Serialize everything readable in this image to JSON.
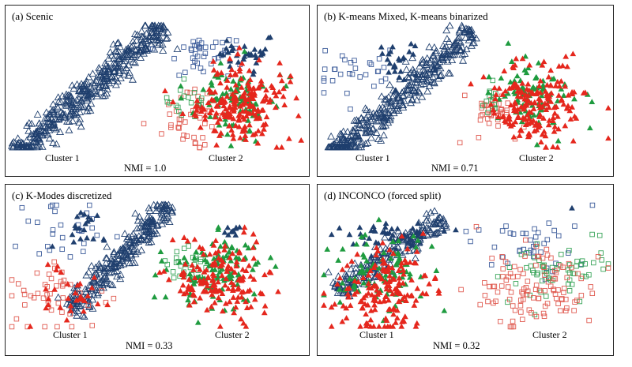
{
  "figure": {
    "colors": {
      "navy": "#1f3f6e",
      "blue_outline": "#3b5b9a",
      "red": "#e5271d",
      "green": "#1e9b3f",
      "red_outline": "#e05a50",
      "green_outline": "#3aa55a"
    }
  },
  "chart_data": [
    {
      "type": "scatter",
      "title": "(a) Scenic",
      "annotation": "NMI = 1.0",
      "cluster_labels": [
        "Cluster 1",
        "Cluster 2"
      ],
      "clusters": [
        {
          "label": "Cluster 1",
          "shape": "elongated diagonal band",
          "markers": [
            {
              "marker": "triangle-open",
              "color": "navy",
              "count": 420
            }
          ]
        },
        {
          "label": "Cluster 2",
          "shape": "round blob",
          "markers": [
            {
              "marker": "square-open",
              "color": "blue_outline",
              "count": 40
            },
            {
              "marker": "triangle-filled",
              "color": "navy",
              "count": 35
            },
            {
              "marker": "square-open",
              "color": "red_outline",
              "count": 45
            },
            {
              "marker": "square-open",
              "color": "green_outline",
              "count": 20
            },
            {
              "marker": "triangle-filled",
              "color": "green",
              "count": 90
            },
            {
              "marker": "triangle-filled",
              "color": "red",
              "count": 200
            }
          ]
        }
      ]
    },
    {
      "type": "scatter",
      "title": "(b) K-means Mixed, K-means binarized",
      "annotation": "NMI = 0.71",
      "cluster_labels": [
        "Cluster 1",
        "Cluster 2"
      ],
      "clusters": [
        {
          "label": "Cluster 1",
          "shape": "elongated diagonal band with split-off subgroup",
          "markers": [
            {
              "marker": "triangle-open",
              "color": "navy",
              "count": 380
            },
            {
              "marker": "square-open",
              "color": "blue_outline",
              "count": 30
            },
            {
              "marker": "triangle-filled",
              "color": "navy",
              "count": 25
            }
          ]
        },
        {
          "label": "Cluster 2",
          "shape": "round blob",
          "markers": [
            {
              "marker": "square-open",
              "color": "red_outline",
              "count": 35
            },
            {
              "marker": "square-open",
              "color": "green_outline",
              "count": 15
            },
            {
              "marker": "triangle-filled",
              "color": "green",
              "count": 90
            },
            {
              "marker": "triangle-filled",
              "color": "red",
              "count": 190
            }
          ]
        }
      ]
    },
    {
      "type": "scatter",
      "title": "(c) K-Modes discretized",
      "annotation": "NMI = 0.33",
      "cluster_labels": [
        "Cluster 1",
        "Cluster 2"
      ],
      "clusters": [
        {
          "label": "Cluster 1",
          "shape": "diagonal band plus scattered points",
          "markers": [
            {
              "marker": "triangle-open",
              "color": "navy",
              "count": 280
            },
            {
              "marker": "square-open",
              "color": "blue_outline",
              "count": 30
            },
            {
              "marker": "triangle-filled",
              "color": "navy",
              "count": 20
            },
            {
              "marker": "square-open",
              "color": "red_outline",
              "count": 45
            },
            {
              "marker": "triangle-filled",
              "color": "red",
              "count": 30
            }
          ]
        },
        {
          "label": "Cluster 2",
          "shape": "round blob",
          "markers": [
            {
              "marker": "square-open",
              "color": "green_outline",
              "count": 30
            },
            {
              "marker": "triangle-filled",
              "color": "green",
              "count": 110
            },
            {
              "marker": "triangle-filled",
              "color": "red",
              "count": 160
            },
            {
              "marker": "triangle-filled",
              "color": "navy",
              "count": 10
            }
          ]
        }
      ]
    },
    {
      "type": "scatter",
      "title": "(d) INCONCO (forced split)",
      "annotation": "NMI = 0.32",
      "cluster_labels": [
        "Cluster 1",
        "Cluster 2"
      ],
      "clusters": [
        {
          "label": "Cluster 1",
          "shape": "diagonal band overlapped by filled triangles",
          "markers": [
            {
              "marker": "triangle-open",
              "color": "navy",
              "count": 220
            },
            {
              "marker": "triangle-filled",
              "color": "navy",
              "count": 40
            },
            {
              "marker": "triangle-filled",
              "color": "green",
              "count": 90
            },
            {
              "marker": "triangle-filled",
              "color": "red",
              "count": 170
            }
          ]
        },
        {
          "label": "Cluster 2",
          "shape": "sparse round cloud of squares",
          "markers": [
            {
              "marker": "square-open",
              "color": "blue_outline",
              "count": 40
            },
            {
              "marker": "square-open",
              "color": "green_outline",
              "count": 60
            },
            {
              "marker": "square-open",
              "color": "red_outline",
              "count": 110
            },
            {
              "marker": "triangle-filled",
              "color": "navy",
              "count": 1
            }
          ]
        }
      ]
    }
  ]
}
